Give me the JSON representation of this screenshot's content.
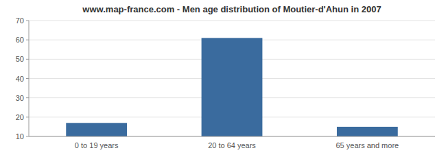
{
  "chart_data": {
    "type": "bar",
    "title": "www.map-france.com - Men age distribution of Moutier-d'Ahun in 2007",
    "categories": [
      "0 to 19 years",
      "20 to 64 years",
      "65 years and more"
    ],
    "values": [
      17,
      61,
      15
    ],
    "color": "#3a6b9e",
    "ylim": [
      10,
      70
    ],
    "yticks": [
      10,
      20,
      30,
      40,
      50,
      60,
      70
    ],
    "grid": true
  }
}
